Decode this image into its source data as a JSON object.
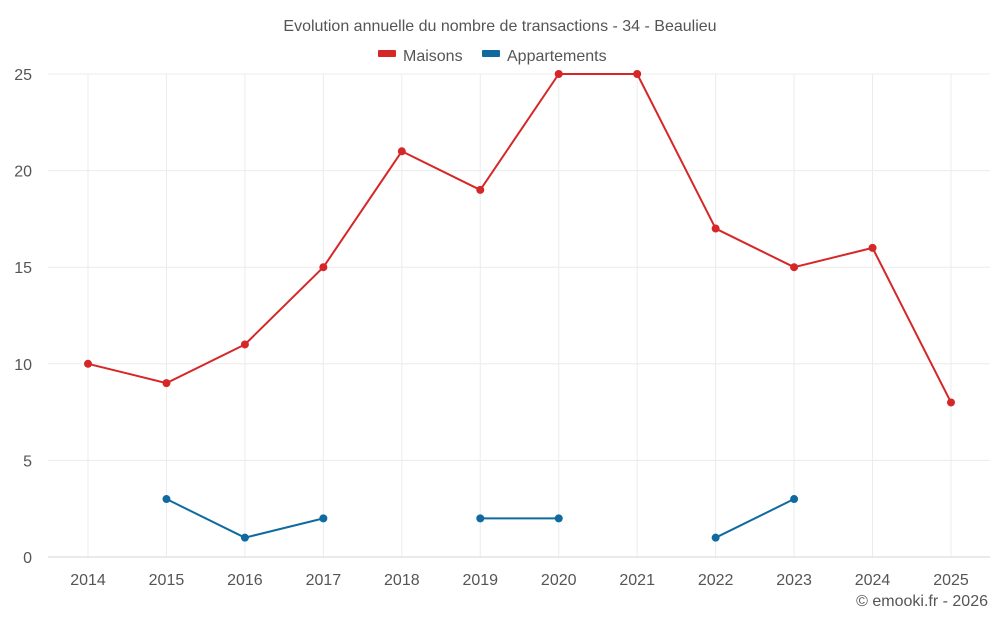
{
  "chart_data": {
    "type": "line",
    "title": "Evolution annuelle du nombre de transactions - 34 - Beaulieu",
    "xlabel": "",
    "ylabel": "",
    "categories": [
      "2014",
      "2015",
      "2016",
      "2017",
      "2018",
      "2019",
      "2020",
      "2021",
      "2022",
      "2023",
      "2024",
      "2025"
    ],
    "ylim": [
      0,
      25
    ],
    "yticks": [
      0,
      5,
      10,
      15,
      20,
      25
    ],
    "grid": true,
    "legend_position": "top-center",
    "series": [
      {
        "name": "Maisons",
        "color": "#d62728",
        "values": [
          10,
          9,
          11,
          15,
          21,
          19,
          25,
          25,
          17,
          15,
          16,
          8
        ]
      },
      {
        "name": "Appartements",
        "color": "#0f6aa0",
        "values": [
          null,
          3,
          1,
          2,
          null,
          2,
          2,
          null,
          1,
          3,
          null,
          null
        ]
      }
    ]
  },
  "credit": "© emooki.fr - 2026"
}
